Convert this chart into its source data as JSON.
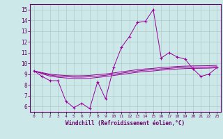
{
  "xlabel": "Windchill (Refroidissement éolien,°C)",
  "x": [
    0,
    1,
    2,
    3,
    4,
    5,
    6,
    7,
    8,
    9,
    10,
    11,
    12,
    13,
    14,
    15,
    16,
    17,
    18,
    19,
    20,
    21,
    22,
    23
  ],
  "y_main": [
    9.3,
    8.8,
    8.4,
    8.4,
    6.5,
    5.9,
    6.3,
    5.8,
    8.3,
    6.7,
    9.6,
    11.5,
    12.5,
    13.8,
    13.9,
    15.0,
    10.5,
    11.0,
    10.6,
    10.4,
    9.5,
    8.8,
    9.0,
    9.6
  ],
  "y_line1": [
    9.3,
    9.05,
    8.82,
    8.72,
    8.65,
    8.6,
    8.6,
    8.62,
    8.7,
    8.78,
    8.88,
    8.98,
    9.08,
    9.18,
    9.25,
    9.3,
    9.38,
    9.42,
    9.48,
    9.52,
    9.54,
    9.55,
    9.56,
    9.6
  ],
  "y_line2": [
    9.3,
    9.1,
    8.92,
    8.83,
    8.77,
    8.73,
    8.73,
    8.76,
    8.83,
    8.9,
    9.0,
    9.1,
    9.2,
    9.3,
    9.37,
    9.42,
    9.5,
    9.54,
    9.6,
    9.63,
    9.65,
    9.66,
    9.67,
    9.7
  ],
  "y_line3": [
    9.3,
    9.15,
    9.0,
    8.93,
    8.88,
    8.85,
    8.86,
    8.89,
    8.96,
    9.02,
    9.12,
    9.22,
    9.32,
    9.42,
    9.49,
    9.54,
    9.62,
    9.66,
    9.72,
    9.75,
    9.77,
    9.78,
    9.79,
    9.82
  ],
  "ylim": [
    5.5,
    15.5
  ],
  "xlim": [
    -0.5,
    23.5
  ],
  "yticks": [
    6,
    7,
    8,
    9,
    10,
    11,
    12,
    13,
    14,
    15
  ],
  "xticks": [
    0,
    1,
    2,
    3,
    4,
    5,
    6,
    7,
    8,
    9,
    10,
    11,
    12,
    13,
    14,
    15,
    16,
    17,
    18,
    19,
    20,
    21,
    22,
    23
  ],
  "line_color": "#990099",
  "bg_color": "#cce8e8",
  "grid_color": "#b0c8c8",
  "spine_color": "#660066",
  "tick_color": "#660066"
}
